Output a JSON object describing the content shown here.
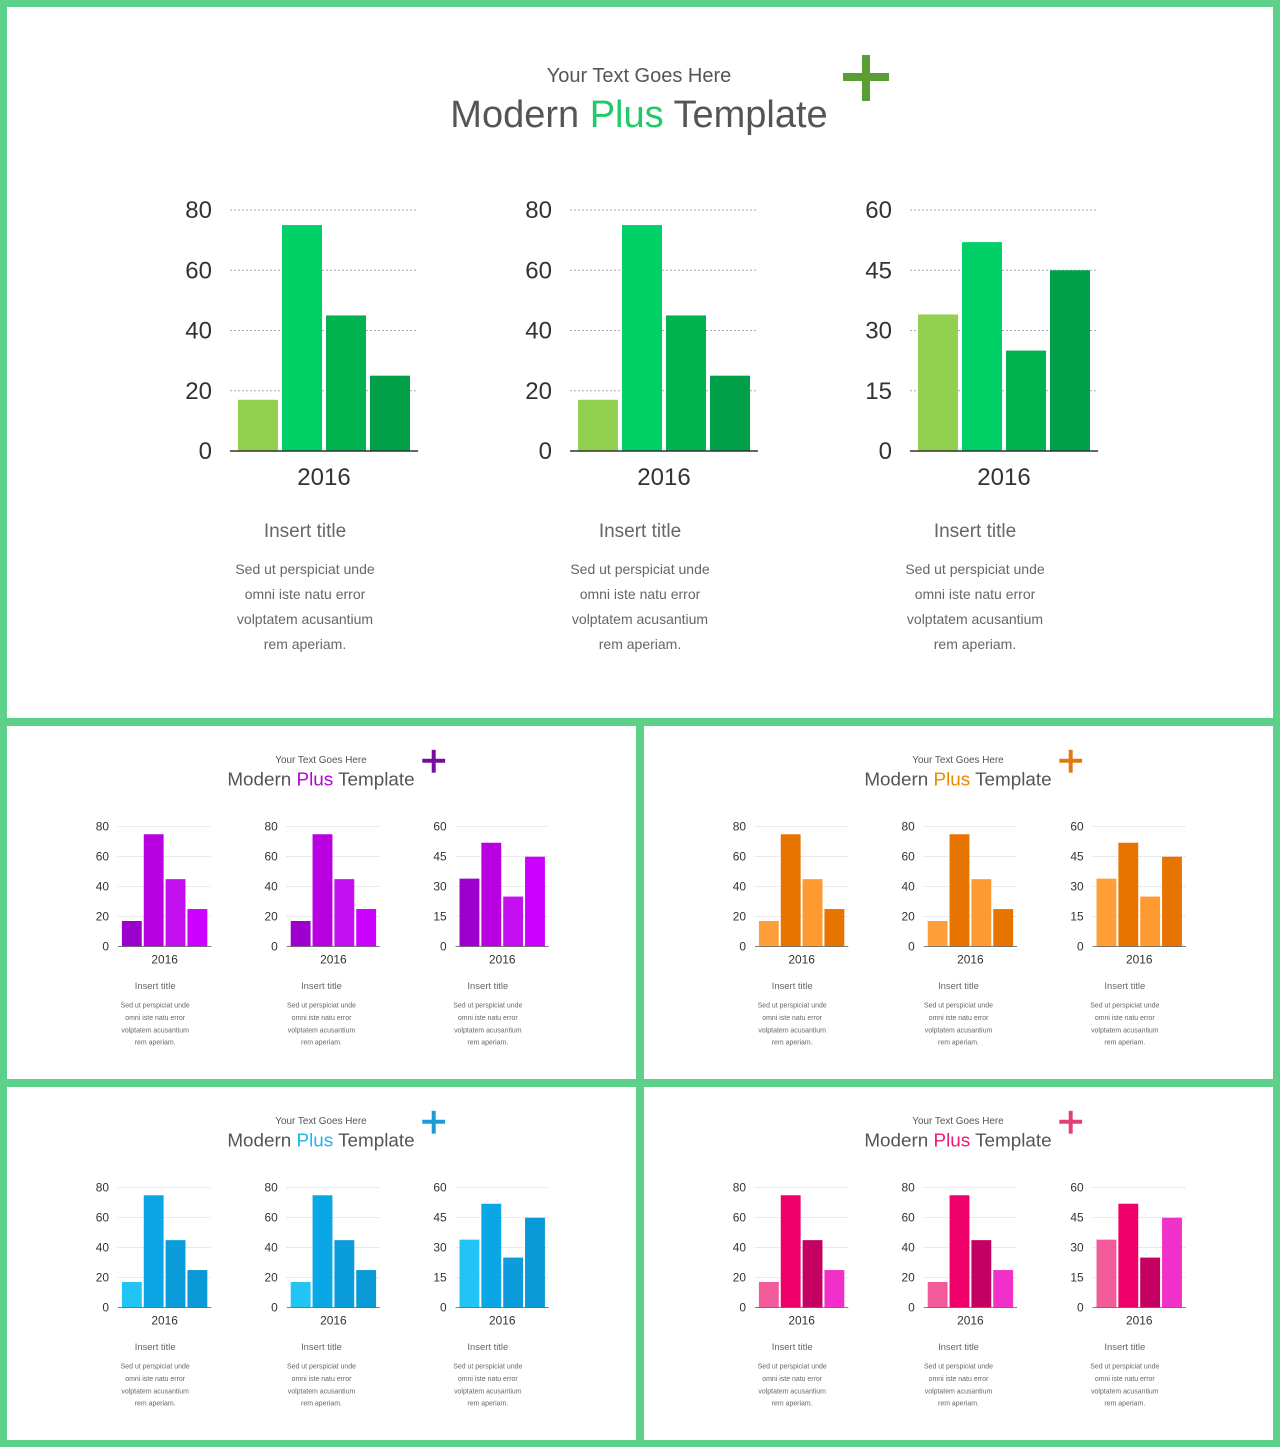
{
  "slides": [
    {
      "id": "main",
      "subtitle": "Your Text Goes Here",
      "title_pre": "Modern ",
      "title_accent": "Plus",
      "title_post": " Template",
      "accent_color": "#1fca68",
      "plus_color": "#5a9e33",
      "colors": [
        "#92d050",
        "#00d166",
        "#00b34f",
        "#00a048"
      ]
    },
    {
      "id": "tl",
      "subtitle": "Your Text Goes Here",
      "title_pre": "Modern ",
      "title_accent": "Plus",
      "title_post": " Template",
      "accent_color": "#b400d6",
      "plus_color": "#7a0aa0",
      "colors": [
        "#9b00cc",
        "#b800e0",
        "#c410f0",
        "#cc00ff"
      ]
    },
    {
      "id": "tr",
      "subtitle": "Your Text Goes Here",
      "title_pre": "Modern ",
      "title_accent": "Plus",
      "title_post": " Template",
      "accent_color": "#e88a00",
      "plus_color": "#e07a10",
      "colors": [
        "#ff9f3a",
        "#e87400",
        "#ff9a30",
        "#e87400"
      ]
    },
    {
      "id": "bl",
      "subtitle": "Your Text Goes Here",
      "title_pre": "Modern ",
      "title_accent": "Plus",
      "title_post": " Template",
      "accent_color": "#1fb5e8",
      "plus_color": "#1a9ad6",
      "colors": [
        "#22c4f5",
        "#0aa6e6",
        "#0b9cdc",
        "#0899d6"
      ]
    },
    {
      "id": "br",
      "subtitle": "Your Text Goes Here",
      "title_pre": "Modern ",
      "title_accent": "Plus",
      "title_post": " Template",
      "accent_color": "#e8177a",
      "plus_color": "#e0407a",
      "colors": [
        "#f25a9a",
        "#f0006a",
        "#c40062",
        "#f030c8"
      ]
    }
  ],
  "panels": [
    {
      "heading": "Insert title",
      "body": [
        "Sed ut perspiciat unde",
        "omni iste natu error",
        "volptatem acusantium",
        "rem aperiam."
      ]
    },
    {
      "heading": "Insert title",
      "body": [
        "Sed ut perspiciat unde",
        "omni iste natu error",
        "volptatem acusantium",
        "rem aperiam."
      ]
    },
    {
      "heading": "Insert title",
      "body": [
        "Sed ut perspiciat unde",
        "omni iste natu error",
        "volptatem acusantium",
        "rem aperiam."
      ]
    }
  ],
  "chart_data": [
    {
      "type": "bar",
      "categories": [
        "2016"
      ],
      "series": [
        {
          "values": [
            17
          ]
        },
        {
          "values": [
            75
          ]
        },
        {
          "values": [
            45
          ]
        },
        {
          "values": [
            25
          ]
        }
      ],
      "ylim": [
        0,
        80
      ],
      "yticks": [
        0,
        20,
        40,
        60,
        80
      ],
      "grid": true
    },
    {
      "type": "bar",
      "categories": [
        "2016"
      ],
      "series": [
        {
          "values": [
            17
          ]
        },
        {
          "values": [
            75
          ]
        },
        {
          "values": [
            45
          ]
        },
        {
          "values": [
            25
          ]
        }
      ],
      "ylim": [
        0,
        80
      ],
      "yticks": [
        0,
        20,
        40,
        60,
        80
      ],
      "grid": true
    },
    {
      "type": "bar",
      "categories": [
        "2016"
      ],
      "series": [
        {
          "values": [
            34
          ]
        },
        {
          "values": [
            52
          ]
        },
        {
          "values": [
            25
          ]
        },
        {
          "values": [
            45
          ]
        }
      ],
      "ylim": [
        0,
        60
      ],
      "yticks": [
        0,
        15,
        30,
        45,
        60
      ],
      "grid": true
    }
  ]
}
